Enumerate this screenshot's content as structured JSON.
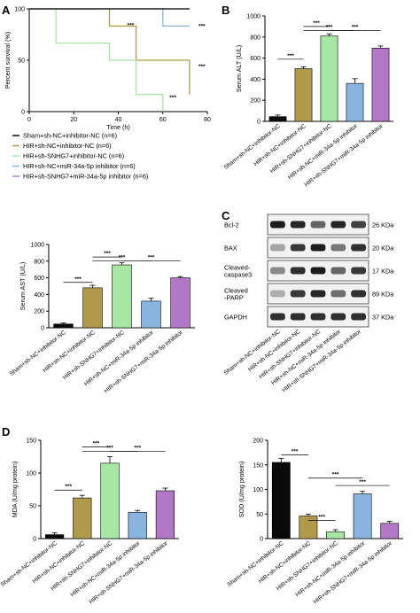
{
  "colors": {
    "black": "#0a0a0a",
    "olive": "#b09a4a",
    "green": "#a6e7a6",
    "blue": "#8ab4e0",
    "purple": "#b278c6"
  },
  "panel_letters": [
    "A",
    "B",
    "C",
    "D"
  ],
  "significance": "***",
  "legend": [
    "Sham+sh-NC+inhibitor-NC (n=6)",
    "HIR+sh-NC+inhibitor-NC (n=6)",
    "HIR+sh-SNHG7+inhibitor-NC (n=6)",
    "HIR+sh-NC+miR-34a-5p inhibitor (n=6)",
    "HIR+sh-SNHG7+miR-34a-5p inhibitor (n=6)"
  ],
  "group_labels": [
    "Sham+sh-NC+inhibitor-NC",
    "HIR+sh-NC+inhibitor-NC",
    "HIR+sh-SNHG7+inhibitor-NC",
    "HIR+sh-NC+miR-34a-5p inhibitor",
    "HIR+sh-SNHG7+miR-34a-5p inhibitor"
  ],
  "western_blot": {
    "bands": [
      {
        "label": "Bcl-2",
        "kda": "26 KDa",
        "intensity": [
          0.95,
          0.9,
          0.55,
          0.9,
          0.75
        ]
      },
      {
        "label": "BAX",
        "kda": "20 KDa",
        "intensity": [
          0.2,
          0.8,
          0.95,
          0.45,
          0.85
        ]
      },
      {
        "label": "Cleaved-\ncaspase3",
        "kda": "17 KDa",
        "intensity": [
          0.35,
          0.85,
          0.95,
          0.55,
          0.8
        ]
      },
      {
        "label": "Cleaved\n-PARP",
        "kda": "89 KDa",
        "intensity": [
          0.15,
          0.8,
          0.9,
          0.5,
          0.85
        ]
      },
      {
        "label": "GAPDH",
        "kda": "37 KDa",
        "intensity": [
          0.85,
          0.85,
          0.85,
          0.85,
          0.85
        ]
      }
    ]
  },
  "chart_data": [
    {
      "id": "A",
      "type": "line",
      "step": true,
      "xlabel": "Time (h)",
      "ylabel": "Percent survival (%)",
      "xlim": [
        0,
        80
      ],
      "ylim": [
        0,
        100
      ],
      "xticks": [
        0,
        20,
        40,
        60,
        80
      ],
      "yticks": [
        0,
        50,
        100
      ],
      "series": [
        {
          "name": "Sham+sh-NC+inhibitor-NC (n=6)",
          "color": "#0a0a0a",
          "points": [
            [
              0,
              100
            ],
            [
              72,
              100
            ]
          ]
        },
        {
          "name": "HIR+sh-NC+inhibitor-NC (n=6)",
          "color": "#b09a4a",
          "points": [
            [
              0,
              100
            ],
            [
              36,
              100
            ],
            [
              36,
              83.3
            ],
            [
              48,
              83.3
            ],
            [
              48,
              50
            ],
            [
              72,
              50
            ],
            [
              72,
              16.7
            ]
          ]
        },
        {
          "name": "HIR+sh-SNHG7+inhibitor-NC (n=6)",
          "color": "#a6e7a6",
          "points": [
            [
              0,
              100
            ],
            [
              12,
              100
            ],
            [
              12,
              66.7
            ],
            [
              36,
              66.7
            ],
            [
              36,
              50
            ],
            [
              48,
              50
            ],
            [
              48,
              16.7
            ],
            [
              60,
              16.7
            ],
            [
              60,
              0
            ]
          ]
        },
        {
          "name": "HIR+sh-NC+miR-34a-5p inhibitor (n=6)",
          "color": "#8ab4e0",
          "points": [
            [
              0,
              100
            ],
            [
              60,
              100
            ],
            [
              60,
              83.3
            ],
            [
              72,
              83.3
            ]
          ]
        },
        {
          "name": "HIR+sh-SNHG7+miR-34a-5p inhibitor (n=6)",
          "color": "#b278c6",
          "points": [
            [
              0,
              100
            ],
            [
              72,
              100
            ]
          ]
        }
      ],
      "annotations": [
        {
          "text": "***",
          "x": 44,
          "y": 84
        },
        {
          "text": "***",
          "x": 76,
          "y": 83.3
        },
        {
          "text": "***",
          "x": 76,
          "y": 44
        },
        {
          "text": "***",
          "x": 63,
          "y": 14
        }
      ]
    },
    {
      "id": "B",
      "type": "bar",
      "ylabel": "Serum ALT (U/L)",
      "ylim": [
        0,
        1000
      ],
      "yticks": [
        0,
        200,
        400,
        600,
        800,
        1000
      ],
      "values": [
        45,
        500,
        810,
        360,
        695
      ],
      "errors": [
        15,
        18,
        20,
        45,
        20
      ],
      "brackets": [
        [
          0,
          1,
          590
        ],
        [
          1,
          2,
          900
        ],
        [
          1,
          3,
          860
        ],
        [
          2,
          4,
          860
        ]
      ]
    },
    {
      "id": "AST",
      "type": "bar",
      "ylabel": "Serum AST (U/L)",
      "ylim": [
        0,
        1000
      ],
      "yticks": [
        0,
        200,
        400,
        600,
        800,
        1000
      ],
      "values": [
        45,
        480,
        755,
        320,
        600
      ],
      "errors": [
        12,
        30,
        25,
        35,
        15
      ],
      "brackets": [
        [
          0,
          1,
          545
        ],
        [
          1,
          2,
          850
        ],
        [
          1,
          3,
          805
        ],
        [
          2,
          4,
          805
        ]
      ]
    },
    {
      "id": "MDA",
      "type": "bar",
      "ylabel": "MDA (U/mg protein)",
      "ylim": [
        0,
        150
      ],
      "yticks": [
        0,
        50,
        100,
        150
      ],
      "values": [
        6,
        62,
        115,
        40,
        73
      ],
      "errors": [
        3,
        4,
        10,
        3,
        4
      ],
      "brackets": [
        [
          0,
          1,
          74
        ],
        [
          1,
          2,
          140
        ],
        [
          1,
          3,
          133
        ],
        [
          2,
          4,
          133
        ]
      ]
    },
    {
      "id": "SOD",
      "type": "bar",
      "ylabel": "SOD (U/mg protein)",
      "ylim": [
        0,
        200
      ],
      "yticks": [
        0,
        50,
        100,
        150,
        200
      ],
      "values": [
        155,
        46,
        14,
        91,
        31
      ],
      "errors": [
        8,
        4,
        4,
        5,
        4
      ],
      "brackets": [
        [
          0,
          1,
          170
        ],
        [
          1,
          2,
          37
        ],
        [
          1,
          3,
          123
        ],
        [
          2,
          4,
          108
        ]
      ]
    }
  ]
}
